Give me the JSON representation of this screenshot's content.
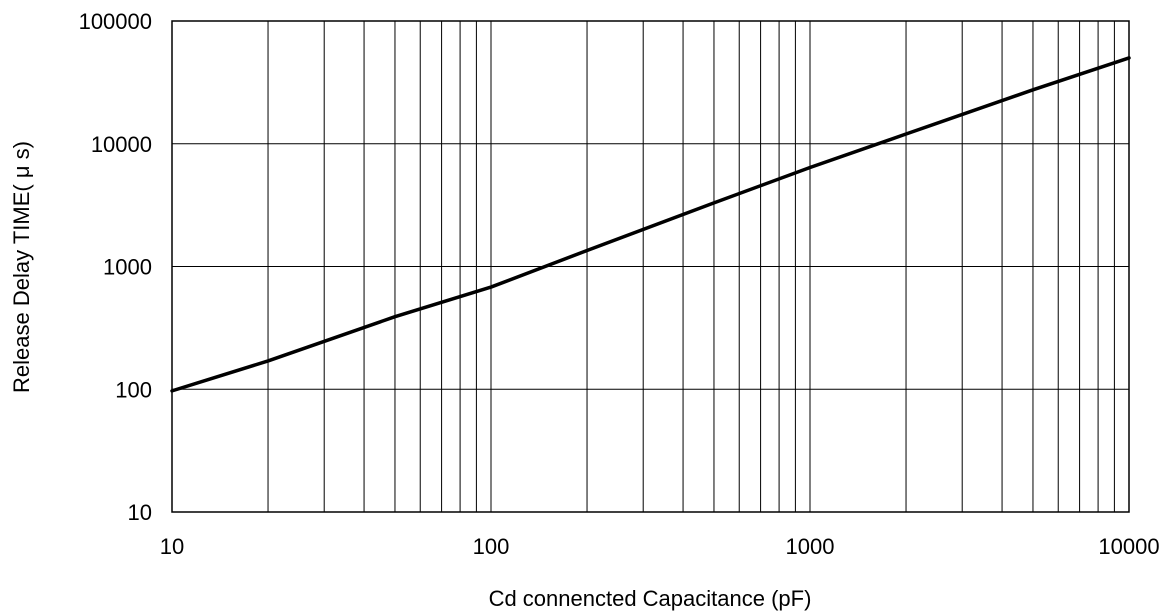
{
  "chart_data": {
    "type": "line",
    "title": "",
    "xlabel": "Cd connencted Capacitance (pF)",
    "ylabel": "Release Delay TIME( μ s)",
    "x_scale": "log",
    "y_scale": "log",
    "xlim": [
      10,
      10000
    ],
    "ylim": [
      10,
      100000
    ],
    "x_ticks": [
      "10",
      "100",
      "1000",
      "10000"
    ],
    "y_ticks": [
      "10",
      "100",
      "1000",
      "10000",
      "100000"
    ],
    "grid": true,
    "series": [
      {
        "x": [
          10,
          20,
          50,
          100,
          200,
          500,
          1000,
          2000,
          5000,
          10000
        ],
        "y": [
          97,
          170,
          390,
          680,
          1350,
          3300,
          6400,
          12000,
          27500,
          50000
        ]
      }
    ],
    "colors": {
      "line": "#000000",
      "grid": "#000000",
      "background": "#ffffff"
    }
  }
}
